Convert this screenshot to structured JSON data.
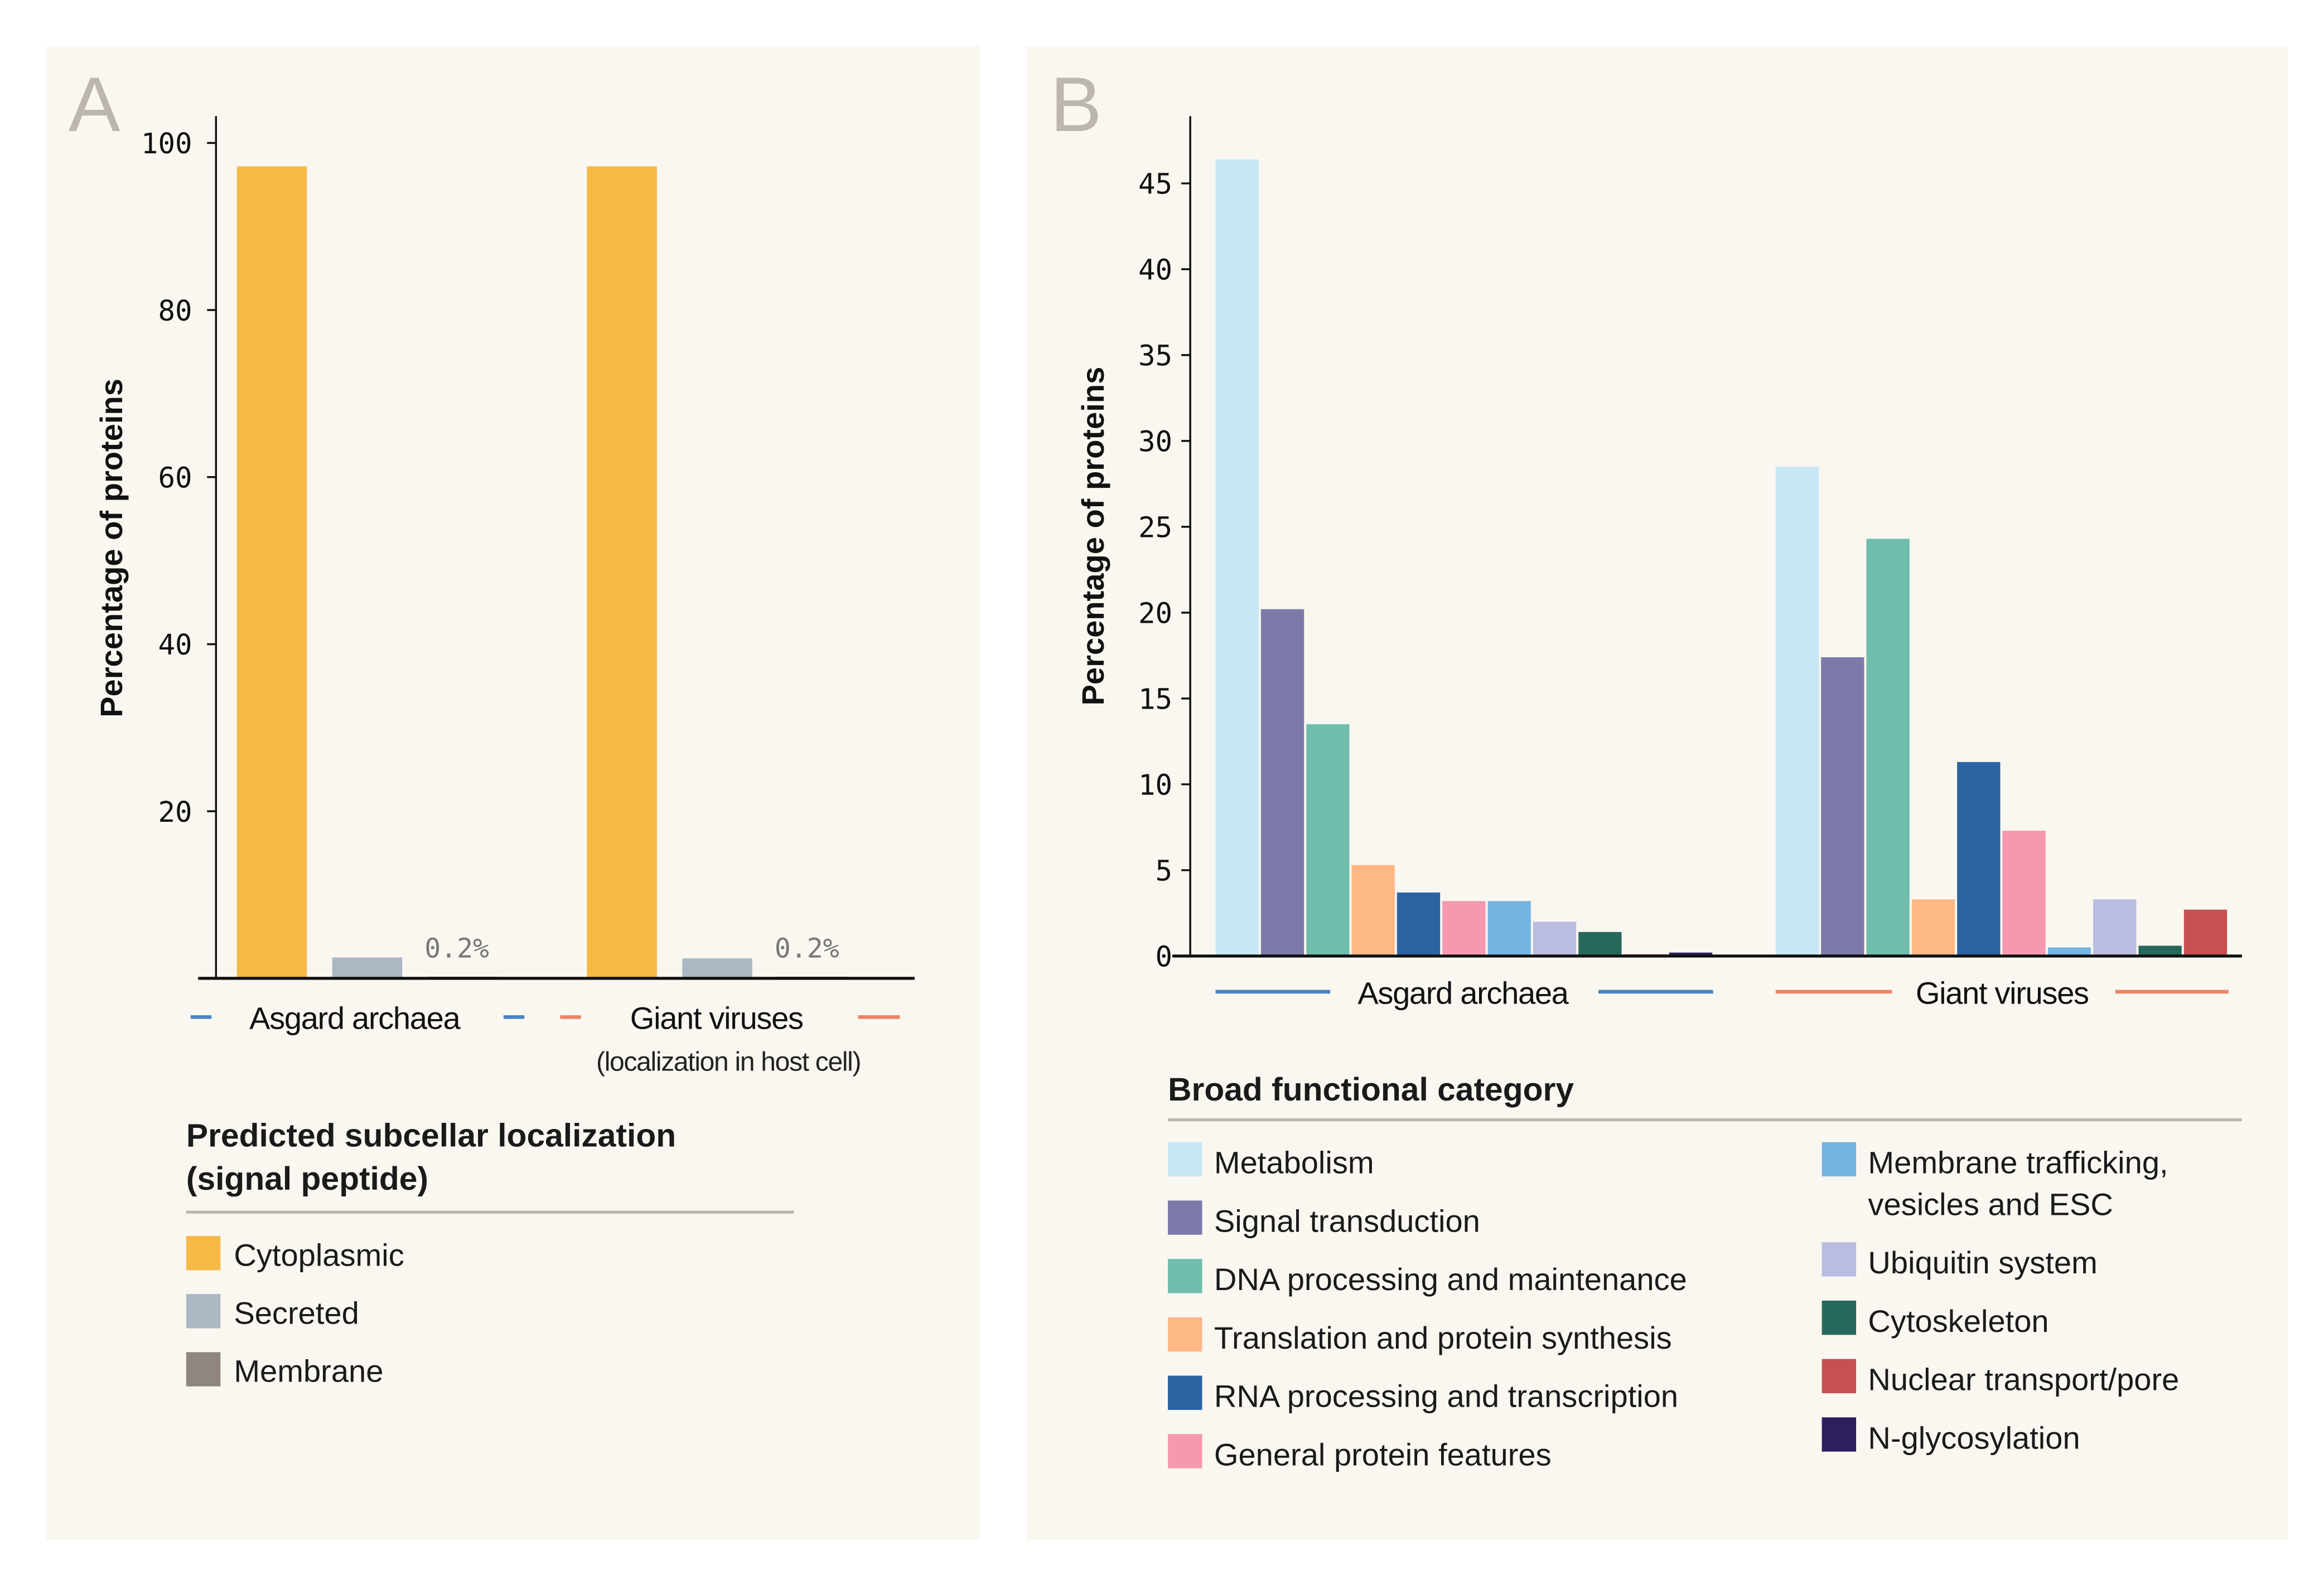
{
  "chart_data": [
    {
      "panel": "A",
      "type": "bar",
      "ylabel": "Percentage of proteins",
      "ylim": [
        0,
        100
      ],
      "yticks": [
        20,
        40,
        60,
        80,
        100
      ],
      "categories": [
        "Asgard archaea",
        "Giant viruses"
      ],
      "category_sublabels": [
        "",
        "(localization in host cell)"
      ],
      "category_line_colors": [
        "#4a86c5",
        "#ec8466"
      ],
      "legend_title": "Predicted subcellar localization (signal peptide)",
      "series": [
        {
          "name": "Cytoplasmic",
          "color": "#f6b946",
          "values": [
            97.2,
            97.2
          ]
        },
        {
          "name": "Secreted",
          "color": "#abb8c3",
          "values": [
            2.5,
            2.4
          ]
        },
        {
          "name": "Membrane",
          "color": "#8f8680",
          "values": [
            0.2,
            0.2
          ]
        }
      ],
      "annotations": [
        "0.2%",
        "0.2%"
      ]
    },
    {
      "panel": "B",
      "type": "bar",
      "ylabel": "Percentage of proteins",
      "ylim": [
        0,
        48
      ],
      "yticks": [
        0,
        5,
        10,
        15,
        20,
        25,
        30,
        35,
        40,
        45
      ],
      "categories": [
        "Asgard archaea",
        "Giant viruses"
      ],
      "category_line_colors": [
        "#4a86c5",
        "#ec8466"
      ],
      "legend_title": "Broad functional category",
      "series": [
        {
          "name": "Metabolism",
          "color": "#c6e7f3",
          "values": [
            46.4,
            28.5
          ]
        },
        {
          "name": "Signal transduction",
          "color": "#7b7aab",
          "values": [
            20.2,
            17.4
          ]
        },
        {
          "name": "DNA processing and maintenance",
          "color": "#70bdac",
          "values": [
            13.5,
            24.3
          ]
        },
        {
          "name": "Translation and protein synthesis",
          "color": "#feb886",
          "values": [
            5.3,
            3.3
          ]
        },
        {
          "name": "RNA processing and transcription",
          "color": "#2b64a2",
          "values": [
            3.7,
            11.3
          ]
        },
        {
          "name": "General protein features",
          "color": "#f598b0",
          "values": [
            3.2,
            7.3
          ]
        },
        {
          "name": "Membrane trafficking, vesicles and ESC",
          "color": "#76b5e2",
          "values": [
            3.2,
            0.5
          ]
        },
        {
          "name": "Ubiquitin system",
          "color": "#b9bde0",
          "values": [
            2.0,
            3.3
          ]
        },
        {
          "name": "Cytoskeleton",
          "color": "#27685c",
          "values": [
            1.4,
            0.6
          ]
        },
        {
          "name": "Nuclear transport/pore",
          "color": "#c85050",
          "values": [
            0.1,
            2.7
          ]
        },
        {
          "name": "N-glycosylation",
          "color": "#2d1f5e",
          "values": [
            0.2,
            0
          ]
        }
      ]
    }
  ],
  "panel_letters": [
    "A",
    "B"
  ],
  "legend_a_title_lines": [
    "Predicted subcellar localization",
    "(signal peptide)"
  ],
  "legend_b_items_col2_line2": "vesicles and ESC",
  "legend_b_items_col2_line1": "Membrane trafficking,",
  "colors": {
    "panel_bg": "#faf7f1",
    "divider": "#bdb6ae"
  }
}
